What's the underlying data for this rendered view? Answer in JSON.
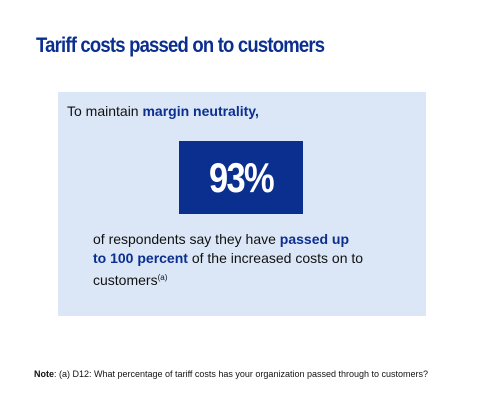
{
  "title": "Tariff costs passed on to customers",
  "intro": {
    "prefix": "To maintain ",
    "highlight": "margin neutrality,"
  },
  "stat": {
    "value": "93%"
  },
  "result": {
    "prefix": "of respondents say they have ",
    "highlight_line1": "passed up",
    "highlight_line2": "to 100 percent",
    "suffix": " of the increased costs on to customers",
    "footnote_marker": "(a)"
  },
  "note": {
    "label": "Note",
    "text": ": (a) D12: What percentage of tariff costs has your organization passed through to customers?"
  },
  "colors": {
    "accent": "#0b2f8f",
    "panel_bg": "#dbe6f7",
    "text": "#111111"
  }
}
